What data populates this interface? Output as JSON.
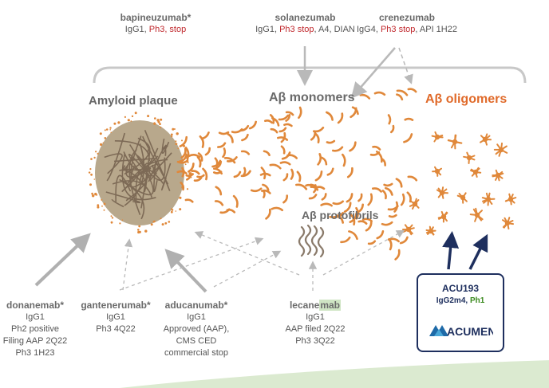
{
  "colors": {
    "plaque": "#b8a88c",
    "plaque_fiber": "#7d6a56",
    "dots": "#e0883a",
    "orange_title": "#e06a2a",
    "red": "#c0282d",
    "navy": "#1e2f5e",
    "arrow_grey": "#b9b9b9",
    "green": "#3b8a1e"
  },
  "stages": {
    "plaque": "Amyloid plaque",
    "monomers": "Aβ monomers",
    "oligomers": "Aβ oligomers",
    "protofibrils": "Aβ protofibrils"
  },
  "drugs": {
    "bapineuzumab": {
      "name": "bapineuzumab*",
      "line1_a": "IgG1, ",
      "line1_b": "Ph3",
      "line1_c": ", stop"
    },
    "solanezumab": {
      "name": "solanezumab",
      "line1_a": "IgG1, ",
      "line1_b": "Ph3 stop",
      "line1_c": ", A4, DIAN"
    },
    "crenezumab": {
      "name": "crenezumab",
      "line1_a": "IgG4, ",
      "line1_b": "Ph3 stop",
      "line1_c": ", API 1H22"
    },
    "donanemab": {
      "name": "donanemab*",
      "lines": [
        "IgG1",
        "Ph2 positive",
        "Filing AAP 2Q22",
        "Ph3 1H23"
      ]
    },
    "gantenerumab": {
      "name": "gantenerumab*",
      "lines": [
        "IgG1",
        "Ph3 4Q22"
      ]
    },
    "aducanumab": {
      "name": "aducanumab*",
      "lines": [
        "IgG1",
        "Approved (AAP),",
        "CMS CED",
        "commercial stop"
      ]
    },
    "lecanemab": {
      "name_a": "lecane",
      "name_b": "mab",
      "lines": [
        "IgG1",
        "AAP filed 2Q22",
        "Ph3 3Q22"
      ]
    },
    "acu193": {
      "name": "ACU193",
      "sub_a": "IgG2m4, ",
      "sub_b": "Ph1"
    }
  },
  "logo": {
    "text": "ACUMEN"
  }
}
